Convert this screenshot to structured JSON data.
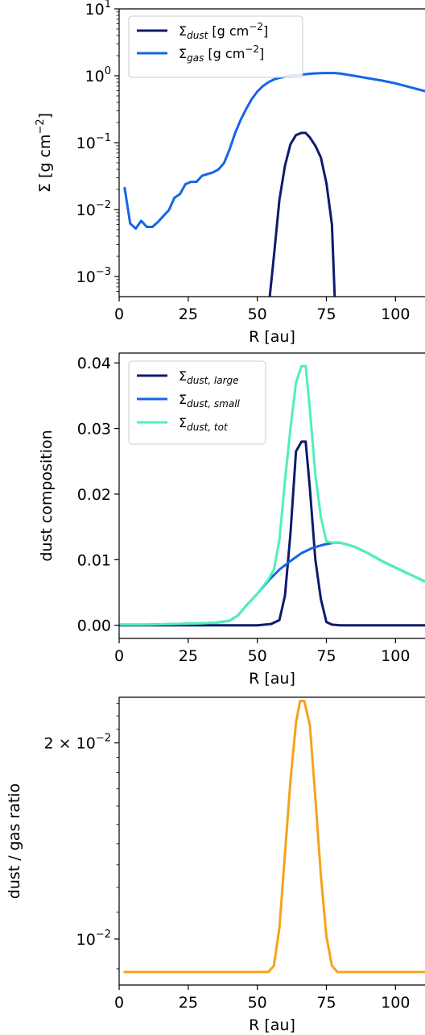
{
  "chart_data": [
    {
      "type": "line",
      "yscale": "log",
      "xlabel": "R [au]",
      "ylabel": "Σ [g cm⁻²]",
      "xlim": [
        0,
        120
      ],
      "ylim": [
        0.0005,
        10
      ],
      "xticks": [
        0,
        25,
        50,
        75,
        100
      ],
      "xtick_labels": [
        "0",
        "25",
        "50",
        "75",
        "100"
      ],
      "yticks": [
        0.001,
        0.01,
        0.1,
        1,
        10
      ],
      "ytick_labels": [
        {
          "base": "10",
          "exp": "−3"
        },
        {
          "base": "10",
          "exp": "−2"
        },
        {
          "base": "10",
          "exp": "−1"
        },
        {
          "base": "10",
          "exp": "0"
        },
        {
          "base": "10",
          "exp": "1"
        }
      ],
      "legend_position": "top-left",
      "series": [
        {
          "name": "Σdust [g cm⁻²]",
          "legend": {
            "sym": "Σ",
            "sub": "dust",
            "rest": " [g cm",
            "sup": "−2",
            "close": "]"
          },
          "color": "#0d1b6e",
          "x": [
            54.5,
            56,
            58,
            60,
            62,
            64,
            66,
            67.5,
            69,
            71,
            73,
            75,
            77,
            78
          ],
          "y": [
            0.0005,
            0.002,
            0.014,
            0.045,
            0.095,
            0.13,
            0.14,
            0.14,
            0.12,
            0.09,
            0.06,
            0.025,
            0.006,
            0.0005
          ]
        },
        {
          "name": "Σgas [g cm⁻²]",
          "legend": {
            "sym": "Σ",
            "sub": "gas",
            "rest": " [g cm",
            "sup": "−2",
            "close": "]"
          },
          "color": "#1565e6",
          "x": [
            2,
            4,
            6,
            8,
            10,
            12,
            14,
            16,
            18,
            20,
            22,
            24,
            26,
            28,
            30,
            32,
            34,
            36,
            38,
            40,
            42,
            44,
            46,
            48,
            50,
            52,
            54,
            56,
            58,
            60,
            62,
            64,
            66,
            68,
            70,
            72,
            74,
            76,
            78,
            80,
            85,
            90,
            95,
            100,
            105,
            110,
            115,
            120
          ],
          "y": [
            0.021,
            0.0062,
            0.0052,
            0.0068,
            0.0055,
            0.0055,
            0.0065,
            0.008,
            0.0098,
            0.015,
            0.017,
            0.024,
            0.026,
            0.026,
            0.032,
            0.034,
            0.036,
            0.04,
            0.05,
            0.08,
            0.14,
            0.22,
            0.32,
            0.45,
            0.58,
            0.7,
            0.8,
            0.88,
            0.93,
            0.97,
            1.0,
            1.02,
            1.04,
            1.06,
            1.08,
            1.09,
            1.1,
            1.1,
            1.1,
            1.08,
            1.0,
            0.92,
            0.85,
            0.77,
            0.68,
            0.6,
            0.52,
            0.45
          ]
        }
      ]
    },
    {
      "type": "line",
      "yscale": "linear",
      "xlabel": "R [au]",
      "ylabel": "dust composition",
      "xlim": [
        0,
        120
      ],
      "ylim": [
        -0.002,
        0.0415
      ],
      "xticks": [
        0,
        25,
        50,
        75,
        100
      ],
      "xtick_labels": [
        "0",
        "25",
        "50",
        "75",
        "100"
      ],
      "yticks": [
        0.0,
        0.01,
        0.02,
        0.03,
        0.04
      ],
      "ytick_labels": [
        "0.00",
        "0.01",
        "0.02",
        "0.03",
        "0.04"
      ],
      "legend_position": "top-left",
      "series": [
        {
          "name": "Σdust,large",
          "legend": {
            "sym": "Σ",
            "sub": "dust, large"
          },
          "color": "#0d1b6e",
          "x": [
            0,
            50,
            55,
            58,
            60,
            62,
            64,
            66,
            67.5,
            69,
            71,
            73,
            75,
            77,
            80,
            120
          ],
          "y": [
            0,
            0,
            0.0002,
            0.0008,
            0.0045,
            0.014,
            0.0265,
            0.028,
            0.028,
            0.021,
            0.01,
            0.004,
            0.0005,
            0.0001,
            0,
            0
          ]
        },
        {
          "name": "Σdust,small",
          "legend": {
            "sym": "Σ",
            "sub": "dust, small"
          },
          "color": "#1565e6",
          "x": [
            0,
            10,
            20,
            30,
            35,
            40,
            43,
            46,
            50,
            54,
            58,
            62,
            66,
            70,
            74,
            78,
            80,
            85,
            90,
            95,
            100,
            105,
            110,
            115,
            120
          ],
          "y": [
            0.0001,
            0.0001,
            0.0002,
            0.0003,
            0.0004,
            0.0007,
            0.0015,
            0.003,
            0.0048,
            0.0068,
            0.0085,
            0.0098,
            0.011,
            0.0118,
            0.0123,
            0.0126,
            0.0126,
            0.012,
            0.011,
            0.0098,
            0.0088,
            0.0078,
            0.0068,
            0.0061,
            0.0055
          ]
        },
        {
          "name": "Σdust,tot",
          "legend": {
            "sym": "Σ",
            "sub": "dust, tot"
          },
          "color": "#4ef0bd",
          "x": [
            0,
            10,
            20,
            30,
            35,
            40,
            43,
            46,
            50,
            54,
            56,
            58,
            60,
            62,
            64,
            66,
            67.5,
            69,
            71,
            73,
            75,
            77,
            80,
            85,
            90,
            95,
            100,
            105,
            110,
            115,
            120
          ],
          "y": [
            0.0001,
            0.0001,
            0.0002,
            0.0003,
            0.0004,
            0.0007,
            0.0015,
            0.003,
            0.0048,
            0.007,
            0.0085,
            0.013,
            0.022,
            0.03,
            0.037,
            0.0395,
            0.0395,
            0.033,
            0.023,
            0.0165,
            0.0128,
            0.0126,
            0.0126,
            0.012,
            0.011,
            0.0098,
            0.0088,
            0.0078,
            0.0068,
            0.0061,
            0.0055
          ]
        }
      ]
    },
    {
      "type": "line",
      "yscale": "log",
      "xlabel": "R [au]",
      "ylabel": "dust / gas ratio",
      "xlim": [
        0,
        120
      ],
      "ylim": [
        0.0085,
        0.0235
      ],
      "xticks": [
        0,
        25,
        50,
        75,
        100
      ],
      "xtick_labels": [
        "0",
        "25",
        "50",
        "75",
        "100"
      ],
      "yticks": [
        0.01,
        0.02
      ],
      "ytick_labels": [
        {
          "base": "10",
          "exp": "−2"
        },
        {
          "pre": "2 × ",
          "base": "10",
          "exp": "−2"
        }
      ],
      "minor_yticks": [
        0.009,
        0.011,
        0.012,
        0.013,
        0.014,
        0.015,
        0.016,
        0.017,
        0.018,
        0.019,
        0.021,
        0.022,
        0.023
      ],
      "series": [
        {
          "name": "",
          "color": "#f5a31a",
          "x": [
            2,
            20,
            40,
            50,
            54,
            56,
            58,
            60,
            62,
            64,
            65.5,
            67,
            69,
            71,
            73,
            75,
            77,
            79,
            82,
            90,
            100,
            110,
            120
          ],
          "y": [
            0.0089,
            0.0089,
            0.0089,
            0.0089,
            0.0089,
            0.0091,
            0.0104,
            0.0135,
            0.0175,
            0.0215,
            0.0232,
            0.0232,
            0.0213,
            0.0165,
            0.0125,
            0.0101,
            0.0091,
            0.0089,
            0.0089,
            0.0089,
            0.0089,
            0.0089,
            0.0089
          ]
        }
      ]
    }
  ]
}
